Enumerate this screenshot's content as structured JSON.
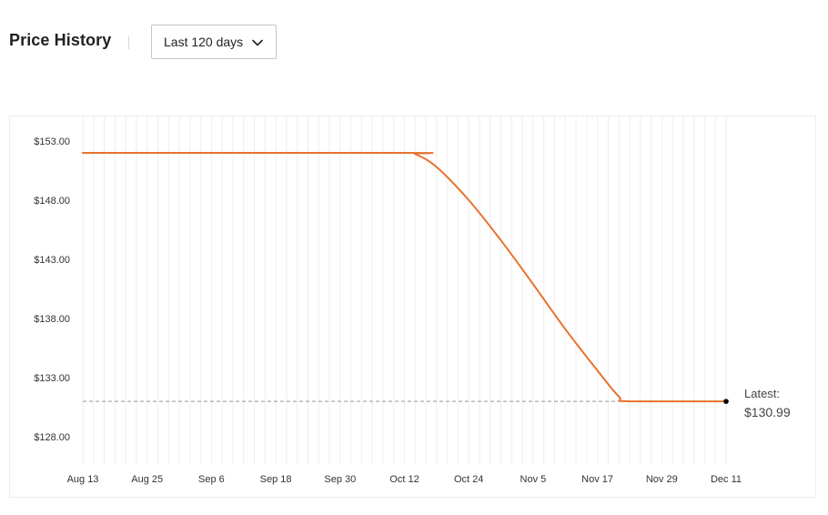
{
  "header": {
    "title": "Price History",
    "range_selected": "Last 120 days",
    "dropdown_icon": "chevron-down-icon"
  },
  "colors": {
    "line": "#E8722C",
    "reference_line": "#AAAAAA",
    "grid": "#EEEEEE",
    "marker": "#000000"
  },
  "chart_data": {
    "type": "line",
    "title": "",
    "xlabel": "",
    "ylabel": "",
    "x_ticks": [
      "Aug 13",
      "Aug 25",
      "Sep 6",
      "Sep 18",
      "Sep 30",
      "Oct 12",
      "Oct 24",
      "Nov 5",
      "Nov 17",
      "Nov 29",
      "Dec 11"
    ],
    "y_ticks": [
      "$153.00",
      "$148.00",
      "$143.00",
      "$138.00",
      "$133.00",
      "$128.00"
    ],
    "ylim": [
      128,
      153
    ],
    "grid": "vertical",
    "series": [
      {
        "x": [
          "Aug 13",
          "Oct 12",
          "Oct 14",
          "Oct 18",
          "Oct 24",
          "Oct 30",
          "Nov 5",
          "Nov 11",
          "Nov 17",
          "Nov 21",
          "Nov 23",
          "Dec 11"
        ],
        "y": [
          152.0,
          152.0,
          151.9,
          150.8,
          148.0,
          144.6,
          140.9,
          137.1,
          133.6,
          131.4,
          130.99,
          130.99
        ]
      }
    ],
    "reference_line": {
      "y": 130.99,
      "style": "dashed"
    },
    "latest": {
      "label": "Latest:",
      "value": "$130.99",
      "x": "Dec 11",
      "y": 130.99
    }
  }
}
